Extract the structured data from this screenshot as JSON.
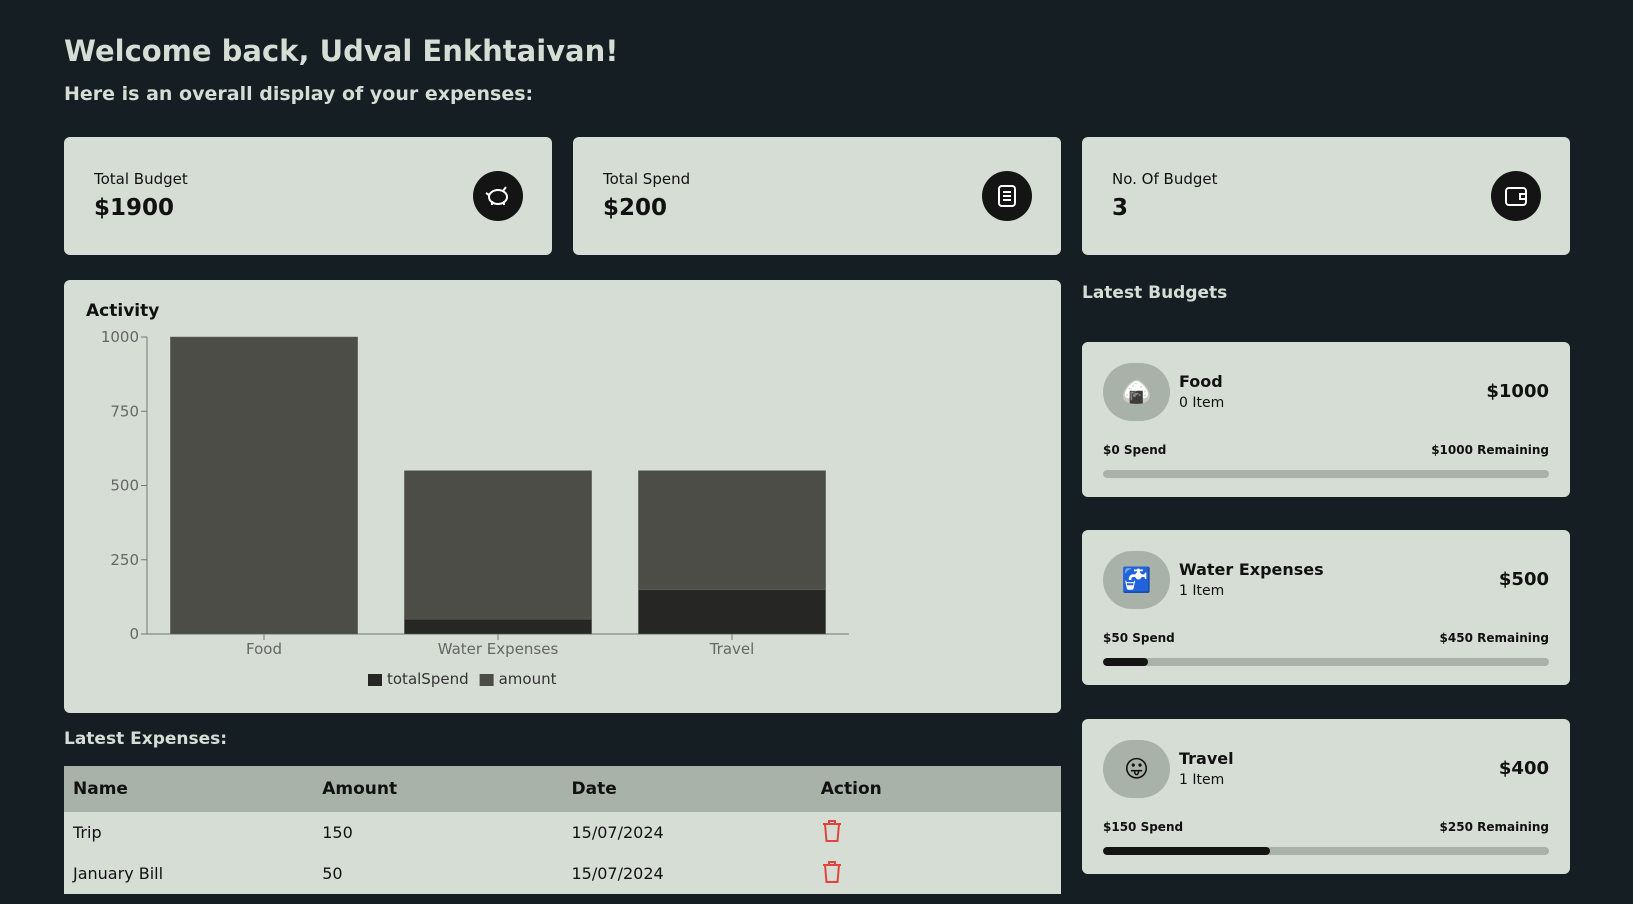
{
  "header": {
    "title": "Welcome back, Udval Enkhtaivan!",
    "subtitle": "Here is an overall display of your expenses:"
  },
  "stats": [
    {
      "label": "Total Budget",
      "value": "$1900"
    },
    {
      "label": "Total Spend",
      "value": "$200"
    },
    {
      "label": "No. Of Budget",
      "value": "3"
    }
  ],
  "chart_data": {
    "type": "bar",
    "stacked": true,
    "title": "Activity",
    "categories": [
      "Food",
      "Water Expenses",
      "Travel"
    ],
    "series": [
      {
        "name": "totalSpend",
        "color": "#262624",
        "values": [
          0,
          50,
          150
        ]
      },
      {
        "name": "amount",
        "color": "#4d4d47",
        "values": [
          1000,
          500,
          400
        ]
      }
    ],
    "ylim": [
      0,
      1000
    ],
    "yticks": [
      0,
      250,
      500,
      750,
      1000
    ]
  },
  "latest_budgets": {
    "title": "Latest Budgets",
    "items": [
      {
        "icon": "🍙",
        "name": "Food",
        "count": "0 Item",
        "amount": "$1000",
        "spend": "$0 Spend",
        "remaining": "$1000 Remaining",
        "progress": 0
      },
      {
        "icon": "🚰",
        "name": "Water Expenses",
        "count": "1 Item",
        "amount": "$500",
        "spend": "$50 Spend",
        "remaining": "$450 Remaining",
        "progress": 10
      },
      {
        "icon": "😛",
        "name": "Travel",
        "count": "1 Item",
        "amount": "$400",
        "spend": "$150 Spend",
        "remaining": "$250 Remaining",
        "progress": 37.5
      }
    ]
  },
  "latest_expenses": {
    "title": "Latest Expenses:",
    "columns": [
      "Name",
      "Amount",
      "Date",
      "Action"
    ],
    "rows": [
      [
        "Trip",
        "150",
        "15/07/2024"
      ],
      [
        "January Bill",
        "50",
        "15/07/2024"
      ]
    ]
  }
}
